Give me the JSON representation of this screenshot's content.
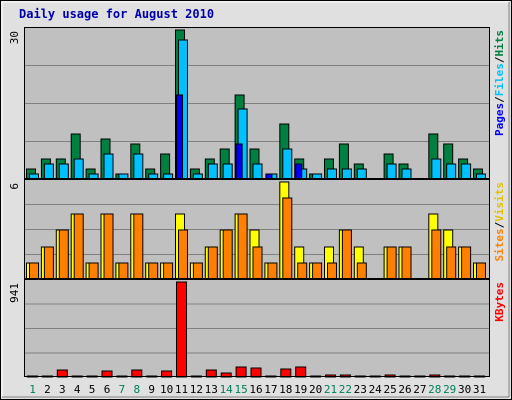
{
  "chart_data": {
    "type": "bar",
    "title": "Daily usage for August 2010",
    "categories": [
      "1",
      "2",
      "3",
      "4",
      "5",
      "6",
      "7",
      "8",
      "9",
      "10",
      "11",
      "12",
      "13",
      "14",
      "15",
      "16",
      "17",
      "18",
      "19",
      "20",
      "21",
      "22",
      "23",
      "24",
      "25",
      "26",
      "27",
      "28",
      "29",
      "30",
      "31"
    ],
    "weekend_days": [
      "1",
      "7",
      "8",
      "14",
      "15",
      "21",
      "22",
      "28",
      "29"
    ],
    "panels": [
      {
        "key": "hits_panel",
        "y_max_label": "30",
        "ylim": [
          0,
          30
        ],
        "grid": true,
        "legend": [
          "Pages",
          "Files",
          "Hits"
        ],
        "series": [
          {
            "name": "Hits",
            "color": "#008040",
            "values": [
              2,
              4,
              4,
              9,
              2,
              8,
              1,
              7,
              2,
              5,
              30,
              2,
              4,
              6,
              17,
              6,
              0,
              11,
              4,
              1,
              4,
              7,
              3,
              0,
              5,
              3,
              0,
              9,
              7,
              4,
              2
            ]
          },
          {
            "name": "Files",
            "color": "#00c0ff",
            "values": [
              1,
              3,
              3,
              4,
              1,
              5,
              1,
              5,
              1,
              1,
              28,
              1,
              3,
              3,
              14,
              3,
              1,
              6,
              2,
              1,
              2,
              2,
              2,
              0,
              3,
              2,
              0,
              4,
              3,
              3,
              1
            ]
          },
          {
            "name": "Pages",
            "color": "#0000ff",
            "values": [
              0,
              0,
              0,
              0,
              0,
              0,
              0,
              0,
              0,
              0,
              17,
              0,
              0,
              0,
              7,
              0,
              1,
              0,
              3,
              0,
              0,
              0,
              0,
              0,
              0,
              0,
              0,
              0,
              0,
              0,
              0
            ]
          }
        ]
      },
      {
        "key": "visits_panel",
        "y_max_label": "6",
        "ylim": [
          0,
          6
        ],
        "grid": true,
        "legend": [
          "Sites",
          "Visits"
        ],
        "series": [
          {
            "name": "Visits",
            "color": "#ffff00",
            "values": [
              1,
              2,
              3,
              4,
              1,
              4,
              1,
              4,
              1,
              1,
              4,
              1,
              2,
              3,
              4,
              3,
              1,
              6,
              2,
              1,
              2,
              3,
              2,
              0,
              2,
              2,
              0,
              4,
              3,
              2,
              1
            ]
          },
          {
            "name": "Sites",
            "color": "#ff8000",
            "values": [
              1,
              2,
              3,
              4,
              1,
              4,
              1,
              4,
              1,
              1,
              3,
              1,
              2,
              3,
              4,
              2,
              1,
              5,
              1,
              1,
              1,
              3,
              1,
              0,
              2,
              2,
              0,
              3,
              2,
              2,
              1
            ]
          }
        ]
      },
      {
        "key": "kbytes_panel",
        "y_max_label": "941",
        "ylim": [
          0,
          941
        ],
        "grid": true,
        "legend": [
          "KBytes"
        ],
        "series": [
          {
            "name": "KBytes",
            "color": "#ff0000",
            "values": [
              3,
              3,
              70,
              3,
              3,
              60,
              3,
              70,
              3,
              60,
              941,
              3,
              70,
              40,
              100,
              90,
              3,
              80,
              100,
              3,
              20,
              20,
              10,
              3,
              20,
              10,
              3,
              20,
              10,
              10,
              10
            ]
          }
        ]
      }
    ],
    "colors": {
      "plot_bg": "#c0c0c0",
      "page_bg": "#e0e0e0",
      "grid": "#808080",
      "title": "#0000aa",
      "weekday_label": "#000000",
      "weekend_label": "#00805c",
      "legend_separator": "#000000"
    }
  }
}
